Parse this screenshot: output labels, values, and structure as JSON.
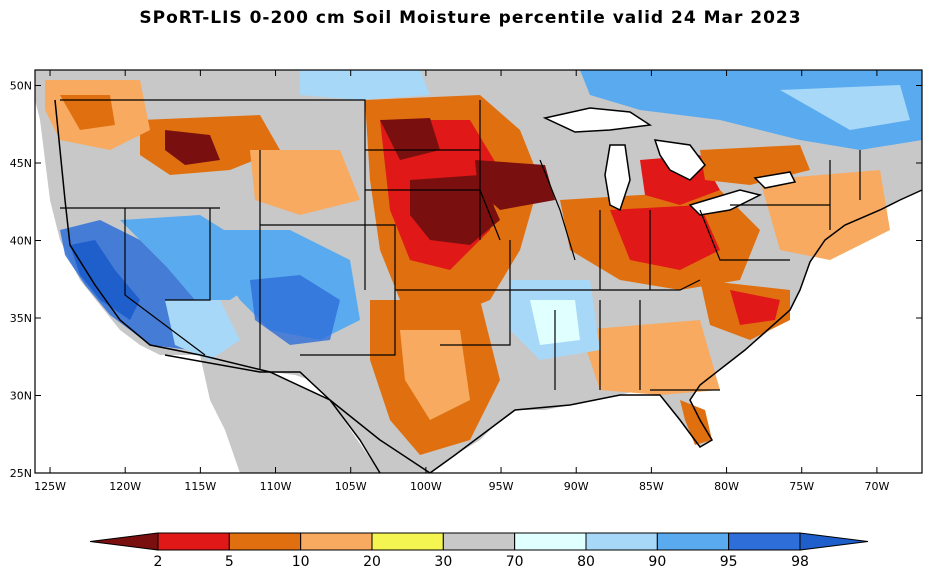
{
  "title": "SPoRT-LIS 0-200 cm Soil Moisture percentile valid 24 Mar 2023",
  "map": {
    "lon_range": [
      -126,
      -67
    ],
    "lat_range": [
      25,
      51
    ],
    "lon_ticks": [
      "125W",
      "120W",
      "115W",
      "110W",
      "105W",
      "100W",
      "95W",
      "90W",
      "85W",
      "80W",
      "75W",
      "70W"
    ],
    "lat_ticks": [
      "25N",
      "30N",
      "35N",
      "40N",
      "45N",
      "50N"
    ]
  },
  "colorbar": {
    "labels": [
      "2",
      "5",
      "10",
      "20",
      "30",
      "70",
      "80",
      "90",
      "95",
      "98"
    ],
    "colors": [
      "#7a0f0f",
      "#e01818",
      "#e0700f",
      "#f7aa60",
      "#f5f552",
      "#c8c8c8",
      "#e0ffff",
      "#a8d8f8",
      "#5aaaf0",
      "#2e6ed8",
      "#1f5fcc"
    ],
    "ranges": [
      "<2",
      "2-5",
      "5-10",
      "10-20",
      "20-30",
      "30-70",
      "70-80",
      "80-90",
      "90-95",
      "95-98",
      ">98"
    ]
  }
}
